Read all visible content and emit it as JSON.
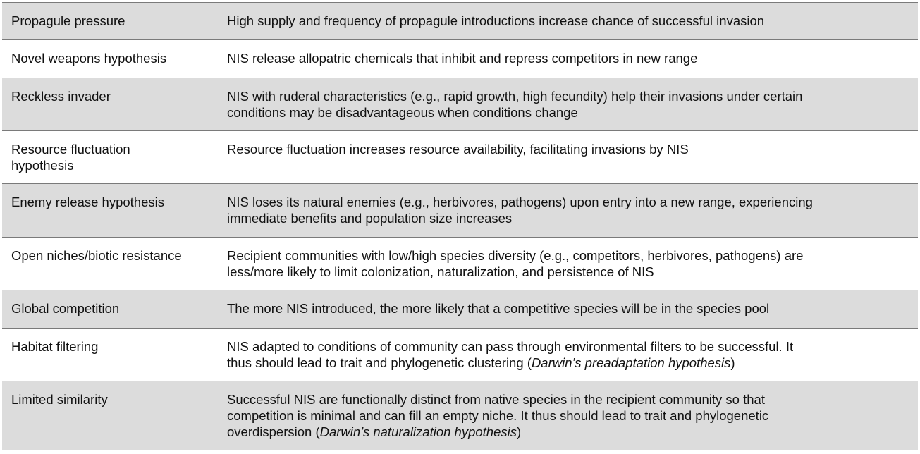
{
  "rows": [
    {
      "term": "Propagule pressure",
      "description": "High supply and frequency of propagule introductions increase chance of successful invasion"
    },
    {
      "term": "Novel weapons hypothesis",
      "description": "NIS release allopatric chemicals that inhibit and repress competitors in new range"
    },
    {
      "term": "Reckless invader",
      "description_line1": "NIS with ruderal characteristics (e.g., rapid growth, high fecundity) help their invasions under certain",
      "description_line2": "conditions may be disadvantageous when conditions change"
    },
    {
      "term_line1": "Resource fluctuation",
      "term_line2": "hypothesis",
      "description": "Resource fluctuation increases resource availability, facilitating invasions by NIS"
    },
    {
      "term": "Enemy release hypothesis",
      "description_line1": "NIS loses its natural enemies (e.g., herbivores, pathogens) upon entry into a new range, experiencing",
      "description_line2": "immediate benefits and population size increases"
    },
    {
      "term": "Open niches/biotic resistance",
      "description_line1": "Recipient communities with low/high species diversity (e.g., competitors, herbivores, pathogens) are",
      "description_line2": "less/more likely to limit colonization, naturalization, and persistence of NIS"
    },
    {
      "term": "Global competition",
      "description": "The more NIS introduced, the more likely that a competitive species will be in the species pool"
    },
    {
      "term": "Habitat filtering",
      "description_line1": "NIS adapted to conditions of community can pass through environmental filters to be successful. It",
      "description_line2_pre": "thus should lead to trait and phylogenetic clustering (",
      "description_line2_italic": "Darwin’s preadaptation hypothesis",
      "description_line2_post": ")"
    },
    {
      "term": "Limited similarity",
      "description_line1": "Successful NIS are functionally distinct from native species in the recipient community so that",
      "description_line2": "competition is minimal and can fill an empty niche. It thus should lead to trait and phylogenetic",
      "description_line3_pre": "overdispersion (",
      "description_line3_italic": "Darwin’s naturalization hypothesis",
      "description_line3_post": ")"
    }
  ]
}
